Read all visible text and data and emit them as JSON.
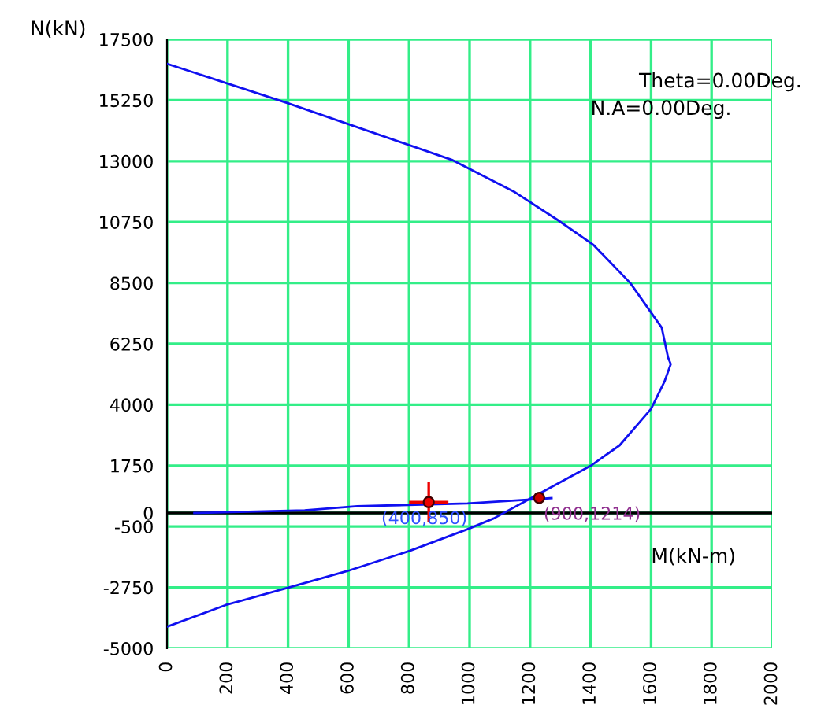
{
  "chart_data": {
    "type": "line",
    "xlabel": "M(kN-m)",
    "ylabel": "N(kN)",
    "annotations": [
      "Theta=0.00Deg.",
      "N.A=0.00Deg.",
      {
        "text": "(400,850)",
        "x": 865,
        "y": 400
      },
      {
        "text": "(900,1214)",
        "x": 1230,
        "y": 560
      }
    ],
    "xlim": [
      0,
      2000
    ],
    "xticks": [
      0,
      200,
      400,
      600,
      800,
      1000,
      1200,
      1400,
      1600,
      1800,
      2000
    ],
    "ylim": [
      -5000,
      17500
    ],
    "yticks": [
      17500,
      15250,
      13000,
      10750,
      8500,
      6250,
      4000,
      1750,
      0,
      -500,
      -2750,
      -5000
    ],
    "grid": true,
    "marker": "none",
    "line_style": "solid",
    "series": [
      {
        "color": "#1010f0",
        "x": [
          0,
          397,
          941,
          1150,
          1288,
          1410,
          1531,
          1635,
          1656,
          1665,
          1644,
          1600,
          1496,
          1401,
          1236,
          1080,
          993,
          802,
          594,
          403,
          194,
          0
        ],
        "values": [
          16600,
          15150,
          13050,
          11850,
          10850,
          9900,
          8500,
          6850,
          5750,
          5500,
          4850,
          3850,
          2500,
          1750,
          750,
          -200,
          -600,
          -1400,
          -2150,
          -2750,
          -3400,
          -4200
        ]
      },
      {
        "color": "#1010f0",
        "x": [
          90,
          455,
          629,
          993,
          1202,
          1271
        ],
        "values": [
          0,
          100,
          250,
          350,
          500,
          550
        ]
      },
      {
        "type": "scatter",
        "marker": "circle",
        "color": "#ee0000",
        "x": [
          865
        ],
        "values": [
          400
        ],
        "errors": [
          750
        ],
        "xerrors": [
          65
        ]
      },
      {
        "type": "scatter",
        "marker": "circle",
        "color": "#cc0000",
        "x": [
          1230
        ],
        "values": [
          560
        ]
      }
    ]
  }
}
